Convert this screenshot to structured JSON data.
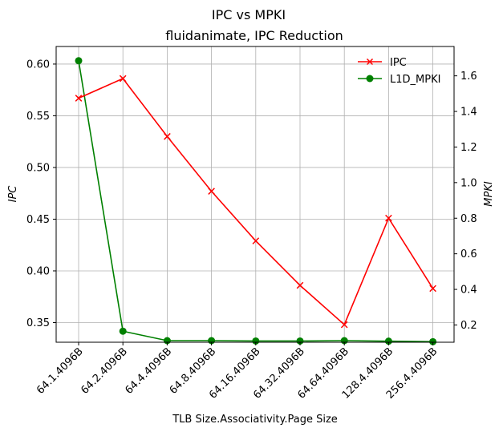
{
  "chart_data": {
    "type": "line",
    "suptitle": "IPC vs MPKI",
    "title": "fluidanimate, IPC Reduction",
    "xlabel": "TLB Size.Associativity.Page Size",
    "ylabel_left": "IPC",
    "ylabel_right": "MPKI",
    "categories": [
      "64.1.4096B",
      "64.2.4096B",
      "64.4.4096B",
      "64.8.4096B",
      "64.16.4096B",
      "64.32.4096B",
      "64.64.4096B",
      "128.4.4096B",
      "256.4.4096B"
    ],
    "y_left_lim": [
      0.331,
      0.617
    ],
    "y_right_lim": [
      0.103,
      1.765
    ],
    "y_left_ticks": [
      "0.35",
      "0.40",
      "0.45",
      "0.50",
      "0.55",
      "0.60"
    ],
    "y_right_ticks": [
      "0.2",
      "0.4",
      "0.6",
      "0.8",
      "1.0",
      "1.2",
      "1.4",
      "1.6"
    ],
    "grid": true,
    "legend_position": "top-right",
    "series": [
      {
        "name": "IPC",
        "axis": "left",
        "color": "#ff0000",
        "marker": "x",
        "values": [
          0.567,
          0.586,
          0.53,
          0.477,
          0.429,
          0.386,
          0.348,
          0.451,
          0.383
        ]
      },
      {
        "name": "L1D_MPKI",
        "axis": "right",
        "color": "#008000",
        "marker": "circle",
        "values": [
          1.685,
          0.165,
          0.112,
          0.112,
          0.11,
          0.11,
          0.112,
          0.109,
          0.106
        ]
      }
    ]
  }
}
